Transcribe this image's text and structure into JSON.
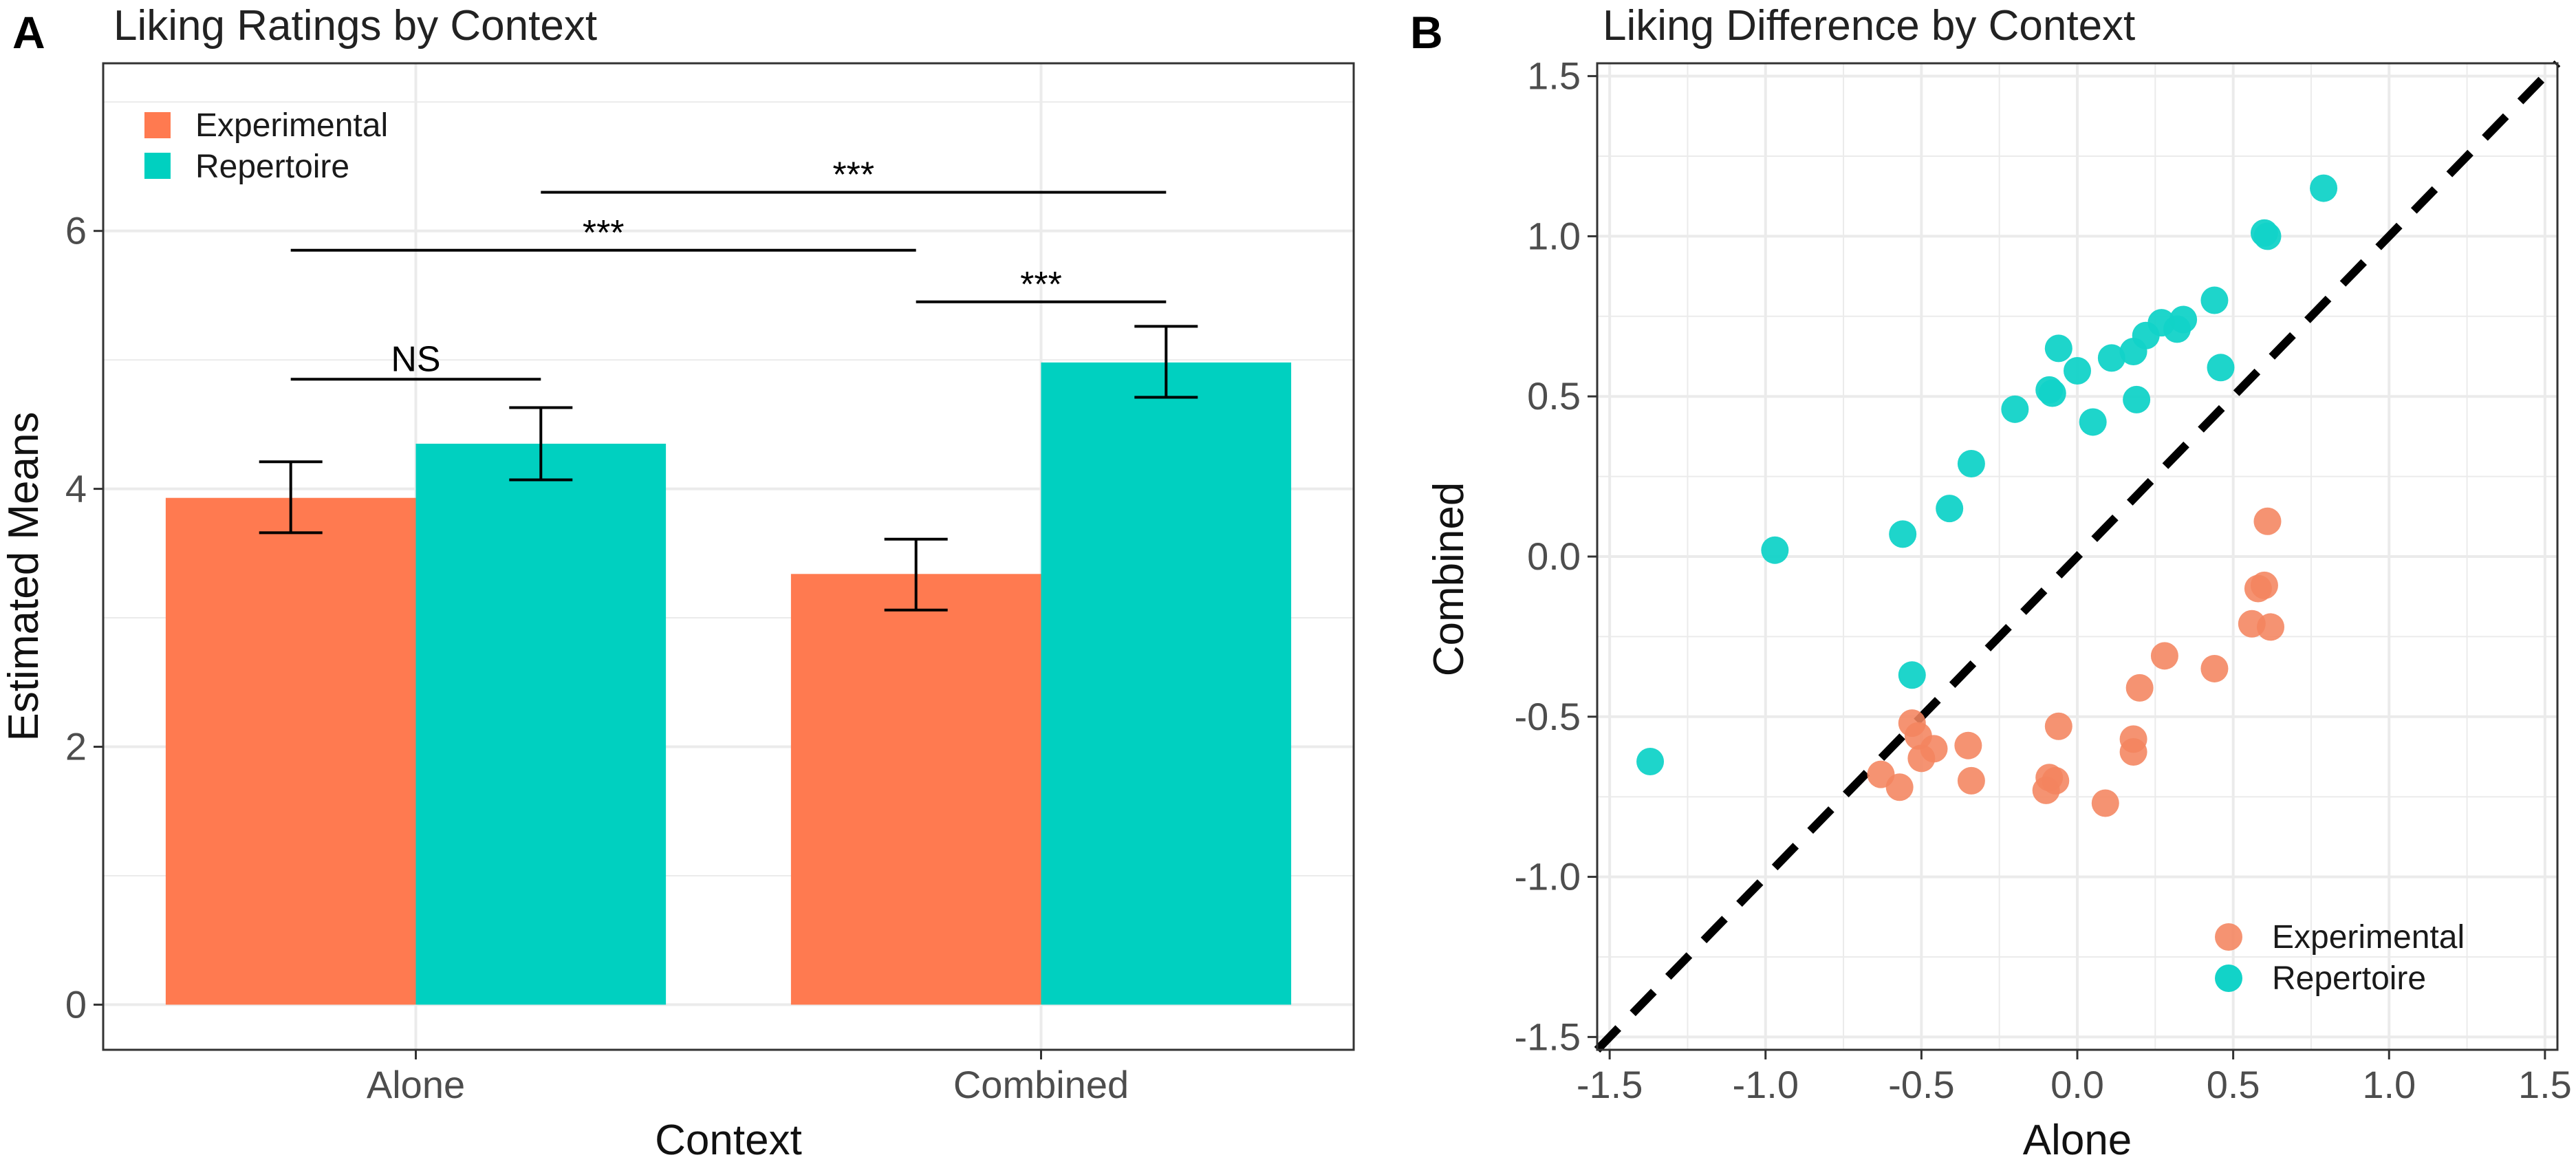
{
  "panels": {
    "a": {
      "letter": "A"
    },
    "b": {
      "letter": "B"
    }
  },
  "colors": {
    "experimental": "#ff7a50",
    "repertoire": "#00d0c0",
    "experimental_point": "#f4845f",
    "repertoire_point": "#12d3c8",
    "grid": "#ebebeb",
    "border": "#333333"
  },
  "chart_data": [
    {
      "type": "bar",
      "title": "Liking Ratings by Context",
      "xlabel": "Context",
      "ylabel": "Estimated Means",
      "categories": [
        "Alone",
        "Combined"
      ],
      "ylim": [
        -0.35,
        7.3
      ],
      "yticks": [
        0,
        2,
        4,
        6
      ],
      "grid": true,
      "legend_position": "top-left",
      "series": [
        {
          "name": "Experimental",
          "values": [
            3.93,
            3.34
          ],
          "err_low": [
            3.66,
            3.06
          ],
          "err_high": [
            4.21,
            3.61
          ]
        },
        {
          "name": "Repertoire",
          "values": [
            4.35,
            4.98
          ],
          "err_low": [
            4.07,
            4.71
          ],
          "err_high": [
            4.63,
            5.26
          ]
        }
      ],
      "annotations": [
        {
          "label": "NS",
          "from": "Alone|Experimental",
          "to": "Alone|Repertoire",
          "y": 4.85
        },
        {
          "label": "***",
          "from": "Combined|Experimental",
          "to": "Combined|Repertoire",
          "y": 5.45
        },
        {
          "label": "***",
          "from": "Alone|Experimental",
          "to": "Combined|Experimental",
          "y": 5.85
        },
        {
          "label": "***",
          "from": "Alone|Repertoire",
          "to": "Combined|Repertoire",
          "y": 6.3
        }
      ]
    },
    {
      "type": "scatter",
      "title": "Liking Difference by Context",
      "xlabel": "Alone",
      "ylabel": "Combined",
      "xlim": [
        -1.54,
        1.54
      ],
      "ylim": [
        -1.54,
        1.54
      ],
      "xticks": [
        -1.5,
        -1.0,
        -0.5,
        0.0,
        0.5,
        1.0,
        1.5
      ],
      "yticks": [
        -1.5,
        -1.0,
        -0.5,
        0.0,
        0.5,
        1.0,
        1.5
      ],
      "tick_labels": [
        "-1.5",
        "-1.0",
        "-0.5",
        "0.0",
        "0.5",
        "1.0",
        "1.5"
      ],
      "grid": true,
      "legend_position": "bottom-right",
      "reference_line": "y = x (dashed)",
      "series": [
        {
          "name": "Experimental",
          "points": [
            [
              -0.63,
              -0.68
            ],
            [
              -0.57,
              -0.72
            ],
            [
              -0.53,
              -0.52
            ],
            [
              -0.51,
              -0.56
            ],
            [
              -0.5,
              -0.63
            ],
            [
              -0.46,
              -0.6
            ],
            [
              -0.35,
              -0.59
            ],
            [
              -0.34,
              -0.7
            ],
            [
              -0.1,
              -0.73
            ],
            [
              -0.09,
              -0.69
            ],
            [
              -0.07,
              -0.7
            ],
            [
              -0.06,
              -0.53
            ],
            [
              0.09,
              -0.77
            ],
            [
              0.18,
              -0.57
            ],
            [
              0.18,
              -0.61
            ],
            [
              0.2,
              -0.41
            ],
            [
              0.28,
              -0.31
            ],
            [
              0.44,
              -0.35
            ],
            [
              0.56,
              -0.21
            ],
            [
              0.58,
              -0.1
            ],
            [
              0.6,
              -0.09
            ],
            [
              0.62,
              -0.22
            ],
            [
              0.61,
              0.11
            ]
          ]
        },
        {
          "name": "Repertoire",
          "points": [
            [
              -1.37,
              -0.64
            ],
            [
              -0.97,
              0.02
            ],
            [
              -0.56,
              0.07
            ],
            [
              -0.53,
              -0.37
            ],
            [
              -0.41,
              0.15
            ],
            [
              -0.34,
              0.29
            ],
            [
              -0.2,
              0.46
            ],
            [
              -0.09,
              0.52
            ],
            [
              -0.08,
              0.51
            ],
            [
              -0.06,
              0.65
            ],
            [
              0.0,
              0.58
            ],
            [
              0.05,
              0.42
            ],
            [
              0.11,
              0.62
            ],
            [
              0.18,
              0.64
            ],
            [
              0.19,
              0.49
            ],
            [
              0.22,
              0.69
            ],
            [
              0.27,
              0.73
            ],
            [
              0.32,
              0.71
            ],
            [
              0.34,
              0.74
            ],
            [
              0.44,
              0.8
            ],
            [
              0.46,
              0.59
            ],
            [
              0.6,
              1.01
            ],
            [
              0.61,
              1.0
            ],
            [
              0.79,
              1.15
            ]
          ]
        }
      ]
    }
  ]
}
